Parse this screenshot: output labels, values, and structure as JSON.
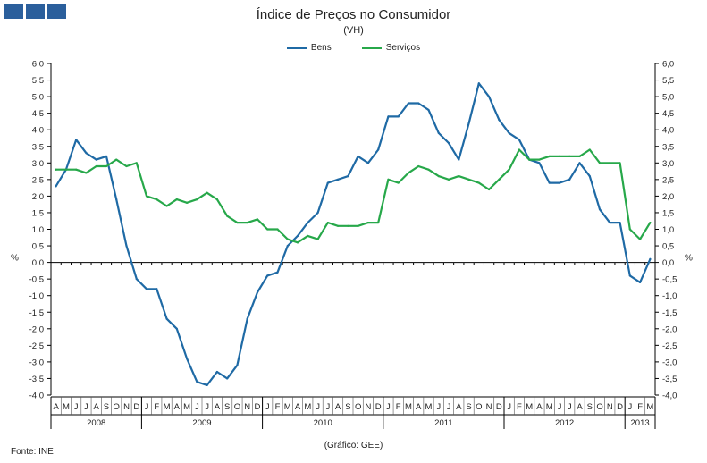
{
  "header": {
    "title": "Índice de Preços no Consumidor",
    "subtitle": "(VH)"
  },
  "footer": {
    "source": "Fonte: INE",
    "credit": "(Gráfico: GEE)"
  },
  "colors": {
    "bens": "#1f6aa5",
    "servicos": "#27a84a",
    "axis": "#000000",
    "logo": "#2b5f9c"
  },
  "chart_data": {
    "type": "line",
    "title": "Índice de Preços no Consumidor",
    "subtitle": "(VH)",
    "ylabel_left": "%",
    "ylabel_right": "%",
    "ylim": [
      -4.0,
      6.0
    ],
    "ytick_step": 0.5,
    "yticks": [
      "6,0",
      "5,5",
      "5,0",
      "4,5",
      "4,0",
      "3,5",
      "3,0",
      "2,5",
      "2,0",
      "1,5",
      "1,0",
      "0,5",
      "0,0",
      "-0,5",
      "-1,0",
      "-1,5",
      "-2,0",
      "-2,5",
      "-3,0",
      "-3,5",
      "-4,0"
    ],
    "legend_position": "top-center",
    "month_labels": [
      "A",
      "M",
      "J",
      "J",
      "A",
      "S",
      "O",
      "N",
      "D",
      "J",
      "F",
      "M",
      "A",
      "M",
      "J",
      "J",
      "A",
      "S",
      "O",
      "N",
      "D",
      "J",
      "F",
      "M",
      "A",
      "M",
      "J",
      "J",
      "A",
      "S",
      "O",
      "N",
      "D",
      "J",
      "F",
      "M",
      "A",
      "M",
      "J",
      "J",
      "A",
      "S",
      "O",
      "N",
      "D",
      "J",
      "F",
      "M",
      "A",
      "M",
      "J",
      "J",
      "A",
      "S",
      "O",
      "N",
      "D",
      "J",
      "F",
      "M"
    ],
    "years": [
      {
        "label": "2008",
        "months": 9
      },
      {
        "label": "2009",
        "months": 12
      },
      {
        "label": "2010",
        "months": 12
      },
      {
        "label": "2011",
        "months": 12
      },
      {
        "label": "2012",
        "months": 12
      },
      {
        "label": "2013",
        "months": 3
      }
    ],
    "series": [
      {
        "name": "Bens",
        "color": "#1f6aa5",
        "values": [
          2.3,
          2.8,
          3.7,
          3.3,
          3.1,
          3.2,
          1.9,
          0.5,
          -0.5,
          -0.8,
          -0.8,
          -1.7,
          -2.0,
          -2.9,
          -3.6,
          -3.7,
          -3.3,
          -3.5,
          -3.1,
          -1.7,
          -0.9,
          -0.4,
          -0.3,
          0.5,
          0.8,
          1.2,
          1.5,
          2.4,
          2.5,
          2.6,
          3.2,
          3.0,
          3.4,
          4.4,
          4.4,
          4.8,
          4.8,
          4.6,
          3.9,
          3.6,
          3.1,
          4.2,
          5.4,
          5.0,
          4.3,
          3.9,
          3.7,
          3.1,
          3.0,
          2.4,
          2.4,
          2.5,
          3.0,
          2.6,
          1.6,
          1.2,
          1.2,
          -0.4,
          -0.6,
          0.1
        ]
      },
      {
        "name": "Serviços",
        "color": "#27a84a",
        "values": [
          2.8,
          2.8,
          2.8,
          2.7,
          2.9,
          2.9,
          3.1,
          2.9,
          3.0,
          2.0,
          1.9,
          1.7,
          1.9,
          1.8,
          1.9,
          2.1,
          1.9,
          1.4,
          1.2,
          1.2,
          1.3,
          1.0,
          1.0,
          0.7,
          0.6,
          0.8,
          0.7,
          1.2,
          1.1,
          1.1,
          1.1,
          1.2,
          1.2,
          2.5,
          2.4,
          2.7,
          2.9,
          2.8,
          2.6,
          2.5,
          2.6,
          2.5,
          2.4,
          2.2,
          2.5,
          2.8,
          3.4,
          3.1,
          3.1,
          3.2,
          3.2,
          3.2,
          3.2,
          3.4,
          3.0,
          3.0,
          3.0,
          1.0,
          0.7,
          1.2
        ]
      }
    ]
  }
}
